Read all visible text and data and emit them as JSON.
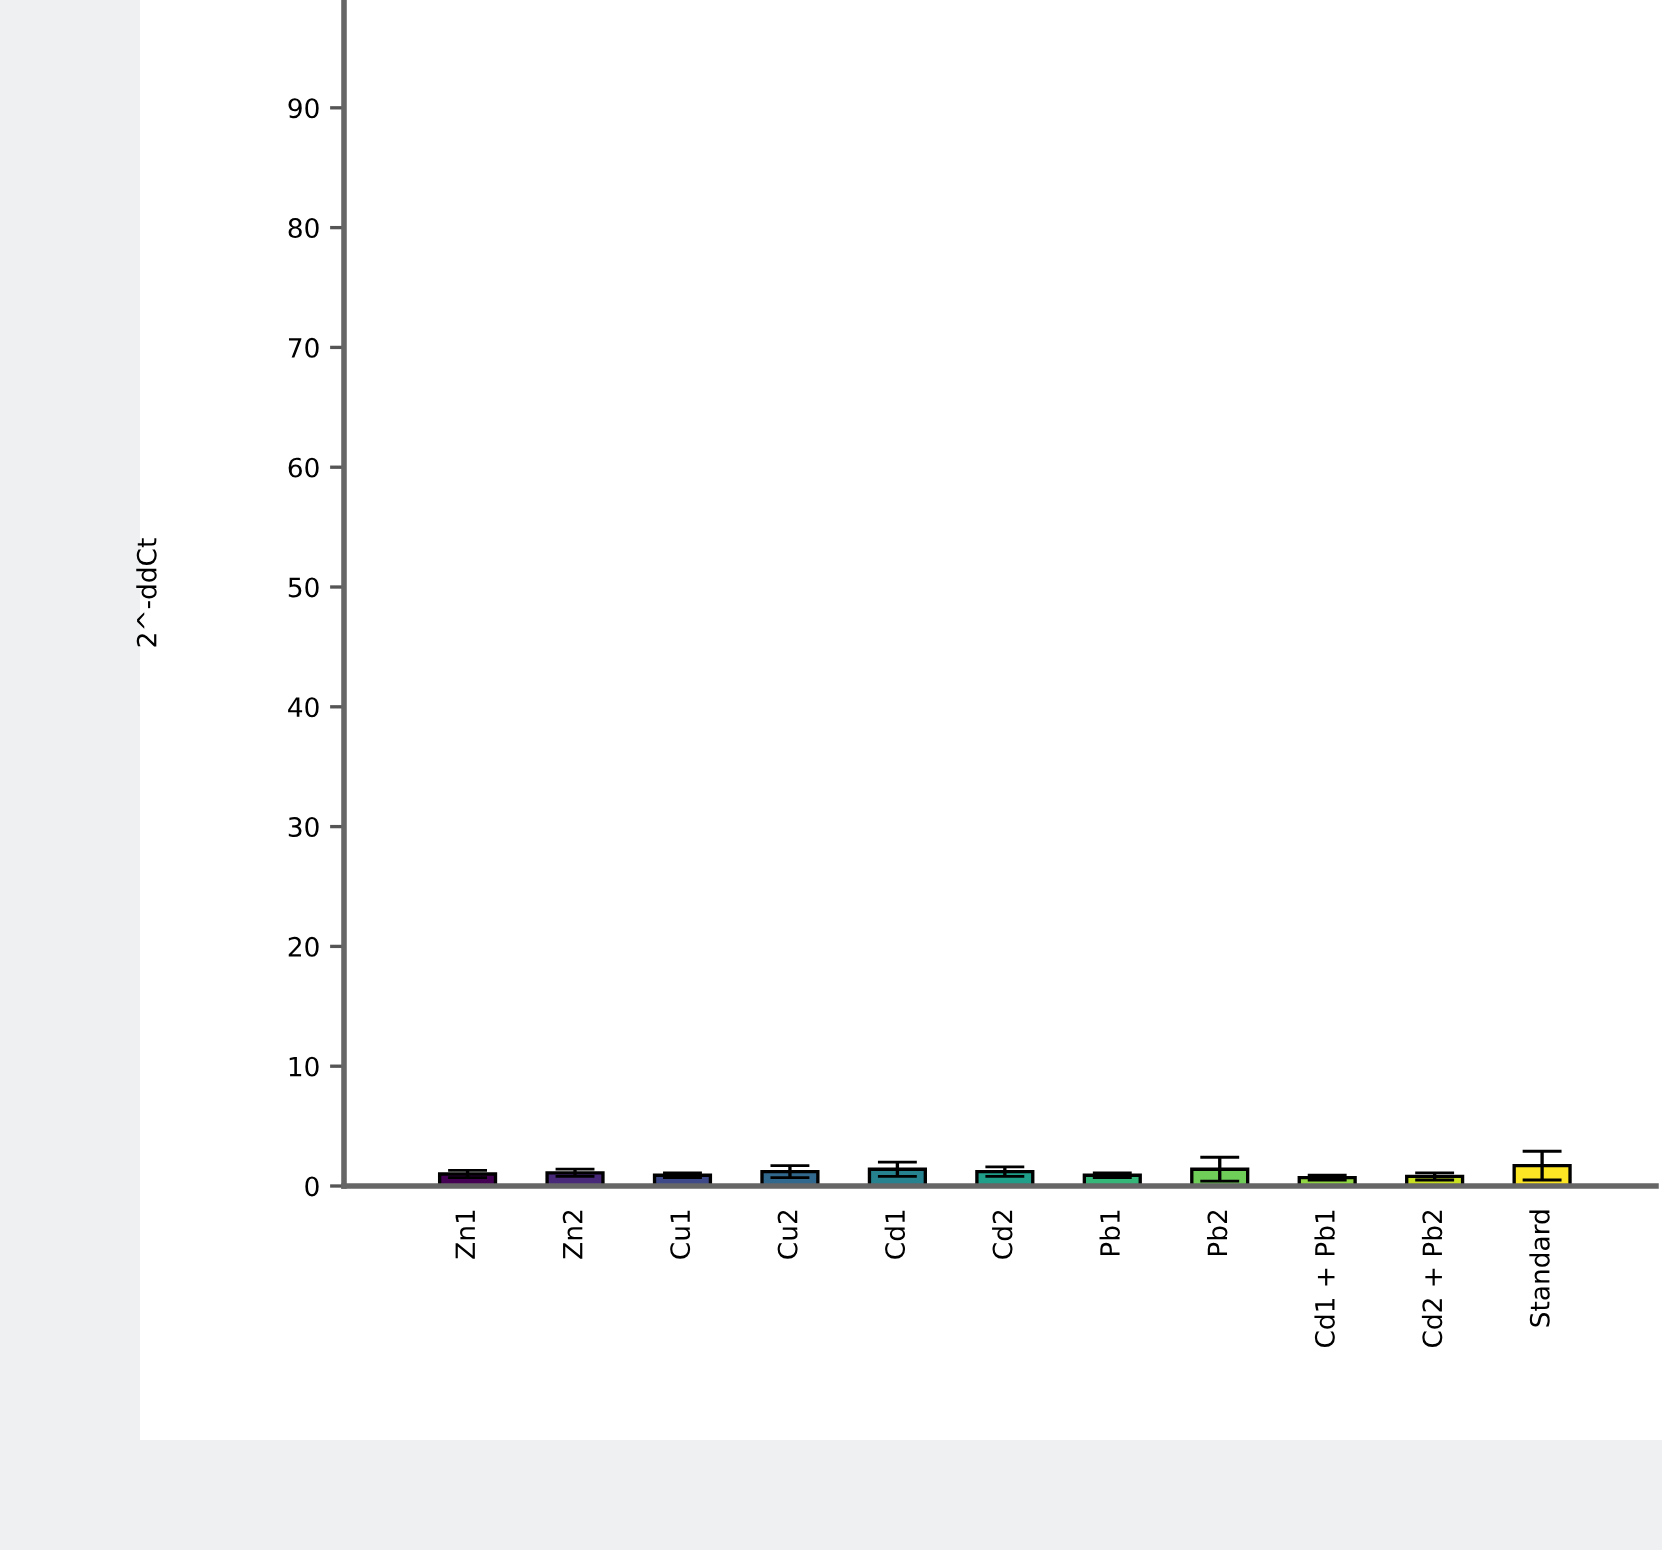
{
  "chart_data": {
    "type": "bar",
    "ylabel": "2^-ddCt",
    "categories": [
      "Zn1",
      "Zn2",
      "Cu1",
      "Cu2",
      "Cd1",
      "Cd2",
      "Pb1",
      "Pb2",
      "Cd1 + Pb1",
      "Cd2 + Pb2",
      "Standard"
    ],
    "values": [
      1.0,
      1.1,
      0.9,
      1.2,
      1.4,
      1.2,
      0.9,
      1.4,
      0.7,
      0.8,
      1.7
    ],
    "errors": [
      0.3,
      0.3,
      0.2,
      0.5,
      0.6,
      0.4,
      0.2,
      1.0,
      0.2,
      0.3,
      1.2
    ],
    "colors": [
      "#440154",
      "#482878",
      "#3e4989",
      "#31688e",
      "#26828e",
      "#1f9e89",
      "#35b779",
      "#6ece58",
      "#90d743",
      "#c8e020",
      "#fde725"
    ],
    "ylim": [
      0,
      99
    ],
    "yticks": [
      0,
      10,
      20,
      30,
      40,
      50,
      60,
      70,
      80,
      90
    ],
    "grid": false,
    "legend": false
  }
}
